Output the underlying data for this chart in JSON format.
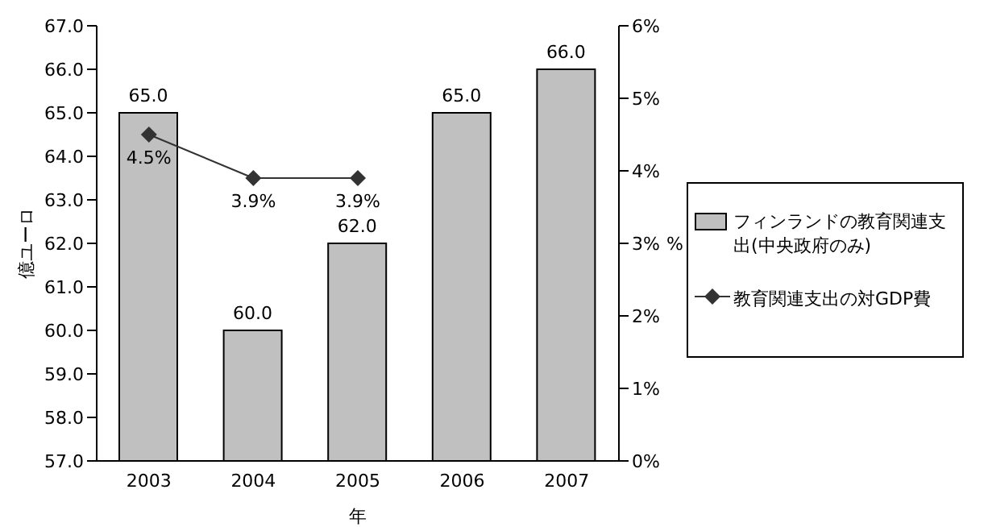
{
  "chart_data": {
    "type": "bar",
    "categories": [
      "2003",
      "2004",
      "2005",
      "2006",
      "2007"
    ],
    "xlabel": "年",
    "ylabel": "億ユーロ",
    "y2label": "%",
    "series": [
      {
        "name": "フィンランドの教育関連支出(中央政府のみ)",
        "color": "#c0c0c0",
        "values": [
          65,
          60,
          62,
          65,
          66
        ],
        "value_labels": [
          "65.0",
          "60.0",
          "62.0",
          "65.0",
          "66.0"
        ]
      },
      {
        "name": "教育関連支出の対GDP費",
        "type": "line",
        "axis": "y2",
        "color": "#333333",
        "marker": "diamond",
        "values": [
          4.5,
          3.9,
          3.9,
          null,
          null
        ],
        "value_labels": [
          "4.5%",
          "3.9%",
          "3.9%",
          null,
          null
        ]
      }
    ],
    "ylim": [
      57,
      67
    ],
    "yticks": [
      {
        "value": 57,
        "label": "57.0"
      },
      {
        "value": 58,
        "label": "58.0"
      },
      {
        "value": 59,
        "label": "59.0"
      },
      {
        "value": 60,
        "label": "60.0"
      },
      {
        "value": 61,
        "label": "61.0"
      },
      {
        "value": 62,
        "label": "62.0"
      },
      {
        "value": 63,
        "label": "63.0"
      },
      {
        "value": 64,
        "label": "64.0"
      },
      {
        "value": 65,
        "label": "65.0"
      },
      {
        "value": 66,
        "label": "66.0"
      },
      {
        "value": 67,
        "label": "67.0"
      }
    ],
    "y2lim": [
      0,
      6
    ],
    "y2ticks": [
      {
        "value": 0,
        "label": "0%"
      },
      {
        "value": 1,
        "label": "1%"
      },
      {
        "value": 2,
        "label": "2%"
      },
      {
        "value": 3,
        "label": "3%"
      },
      {
        "value": 4,
        "label": "4%"
      },
      {
        "value": 5,
        "label": "5%"
      },
      {
        "value": 6,
        "label": "6%"
      }
    ],
    "legend": "right",
    "grid": false
  }
}
